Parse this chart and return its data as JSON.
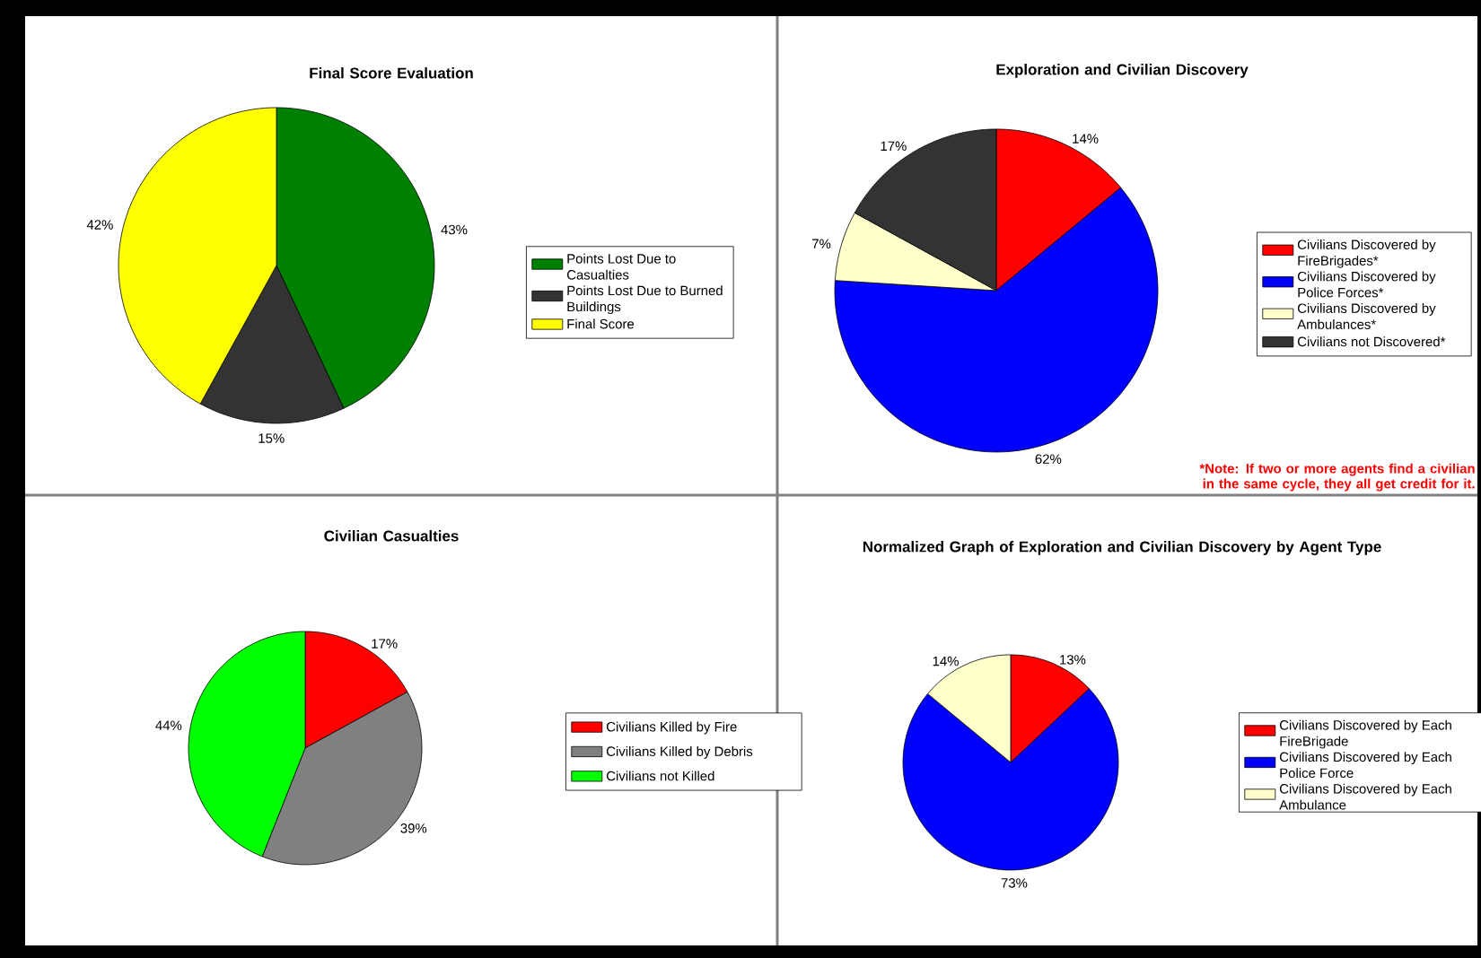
{
  "chart_data": [
    {
      "type": "pie",
      "title": "Final Score Evaluation",
      "categories": [
        "Points Lost Due to Casualties",
        "Points Lost Due to Burned Buildings",
        "Final Score"
      ],
      "values": [
        43,
        15,
        42
      ],
      "colors": [
        "#008000",
        "#333333",
        "#ffff00"
      ],
      "value_labels": [
        "43%",
        "15%",
        "42%"
      ],
      "legend": "right"
    },
    {
      "type": "pie",
      "title": "Exploration and Civilian Discovery",
      "categories": [
        "Civilians Discovered by FireBrigades*",
        "Civilians Discovered by Police Forces*",
        "Civilians Discovered by Ambulances*",
        "Civilians not Discovered*"
      ],
      "values": [
        14,
        62,
        7,
        17
      ],
      "colors": [
        "#ff0000",
        "#0000ff",
        "#ffffcc",
        "#333333"
      ],
      "value_labels": [
        "14%",
        "62%",
        "7%",
        "17%"
      ],
      "legend": "right",
      "annotations": [
        "*Note: If two or more agents find a civilian in the same cycle, they all get credit for it."
      ]
    },
    {
      "type": "pie",
      "title": "Civilian Casualties",
      "categories": [
        "Civilians Killed by Fire",
        "Civilians Killed by Debris",
        "Civilians not Killed"
      ],
      "values": [
        17,
        39,
        44
      ],
      "colors": [
        "#ff0000",
        "#808080",
        "#00ff00"
      ],
      "value_labels": [
        "17%",
        "39%",
        "44%"
      ],
      "legend": "right"
    },
    {
      "type": "pie",
      "title": "Normalized Graph of Exploration and Civilian Discovery by Agent Type",
      "categories": [
        "Civilians Discovered by Each FireBrigade",
        "Civilians Discovered by Each Police Force",
        "Civilians Discovered by Each Ambulance"
      ],
      "values": [
        13,
        73,
        14
      ],
      "colors": [
        "#ff0000",
        "#0000ff",
        "#ffffcc"
      ],
      "value_labels": [
        "13%",
        "73%",
        "14%"
      ],
      "legend": "right"
    }
  ]
}
